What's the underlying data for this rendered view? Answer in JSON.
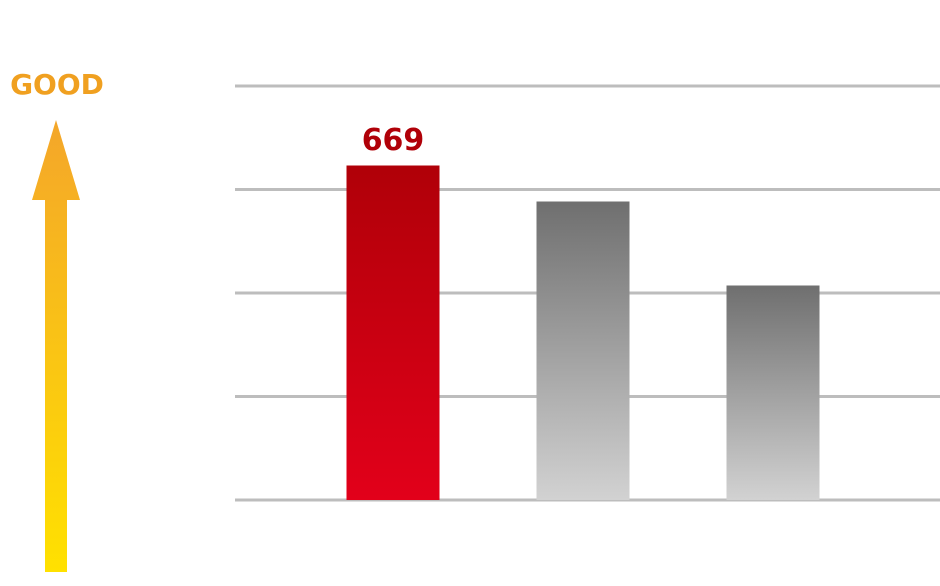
{
  "chart_data": {
    "type": "bar",
    "annotation": "GOOD",
    "categories": [
      null,
      null,
      null
    ],
    "values": [
      669,
      597,
      429
    ],
    "highlight_index": 0,
    "highlight_color": [
      "#b00008",
      "#e2001a"
    ],
    "color": [
      "#6f6f6f",
      "#d2d2d2"
    ],
    "ylim": [
      0,
      828
    ],
    "yticks": [
      0,
      207,
      414,
      621,
      828
    ],
    "grid": true
  }
}
